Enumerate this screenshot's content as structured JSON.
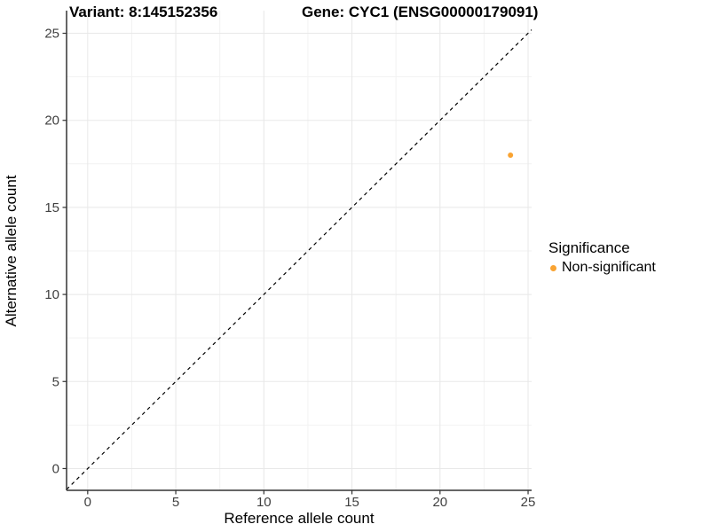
{
  "chart_data": {
    "type": "scatter",
    "title_left": "Variant: 8:145152356",
    "title_right": "Gene: CYC1 (ENSG00000179091)",
    "xlabel": "Reference allele count",
    "ylabel": "Alternative allele count",
    "xlim": [
      -1.2,
      25.2
    ],
    "ylim": [
      -1.25,
      26.3
    ],
    "xticks": [
      0,
      5,
      10,
      15,
      20,
      25
    ],
    "yticks": [
      0,
      5,
      10,
      15,
      20,
      25
    ],
    "grid": "major+minor",
    "legend_position": "right",
    "legend_title": "Significance",
    "reference_line": {
      "type": "identity-diagonal",
      "style": "dashed",
      "color": "#000000"
    },
    "series": [
      {
        "name": "Non-significant",
        "color": "#F9A332",
        "marker": "circle",
        "points": [
          {
            "x": 24,
            "y": 18
          }
        ]
      }
    ]
  },
  "colors": {
    "background": "#ffffff",
    "axis_line": "#333333",
    "tick_mark": "#333333",
    "tick_label": "#404040",
    "grid_major": "#E8E8E8",
    "grid_minor": "#F2F2F2",
    "point_orange": "#F9A332"
  }
}
